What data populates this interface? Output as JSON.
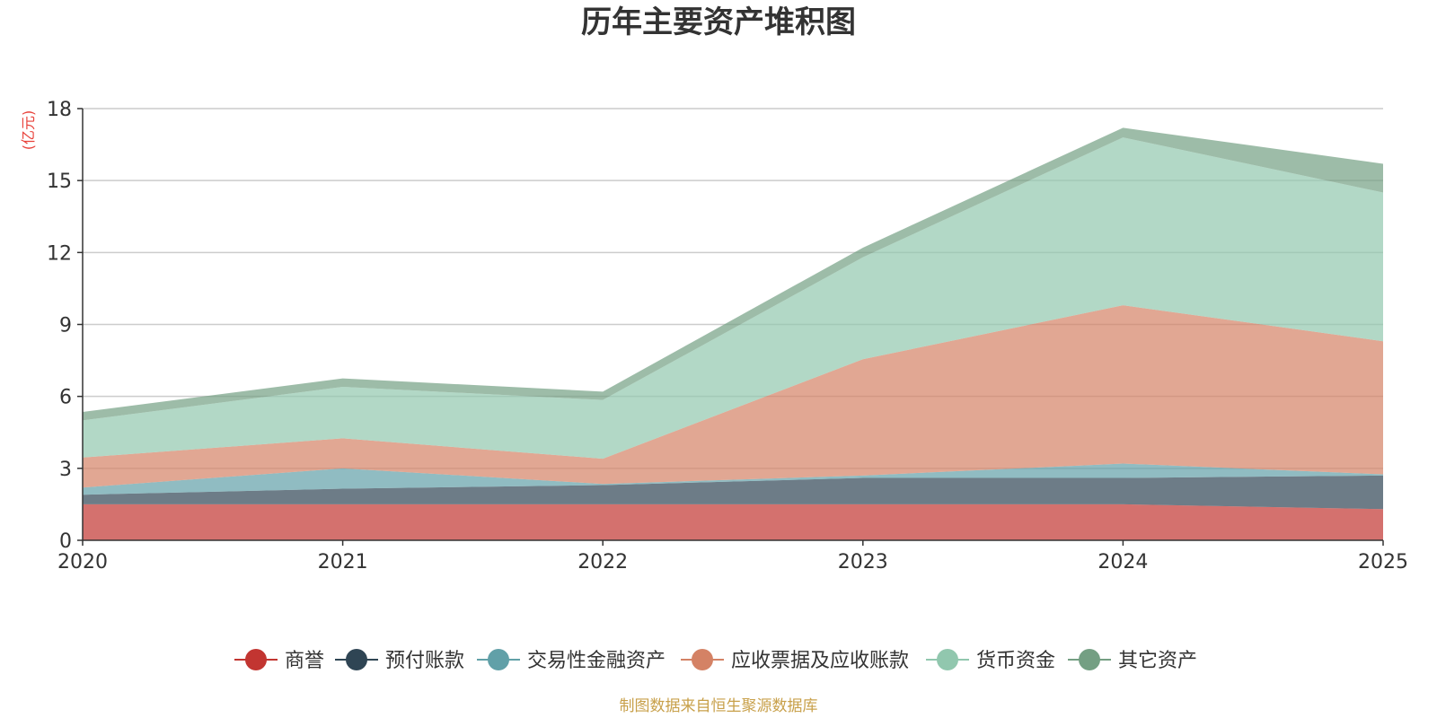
{
  "chart_data": {
    "type": "area",
    "stacked": true,
    "title": "历年主要资产堆积图",
    "unit_label": "(亿元)",
    "source": "制图数据来自恒生聚源数据库",
    "categories": [
      "2020",
      "2021",
      "2022",
      "2023",
      "2024",
      "2025"
    ],
    "ylim": [
      0,
      18
    ],
    "yticks": [
      0,
      3,
      6,
      9,
      12,
      15,
      18
    ],
    "grid": true,
    "legend_position": "bottom",
    "series": [
      {
        "name": "商誉",
        "color": "#c23531",
        "values": [
          1.5,
          1.5,
          1.5,
          1.5,
          1.5,
          1.3
        ]
      },
      {
        "name": "预付账款",
        "color": "#2f4554",
        "values": [
          0.4,
          0.65,
          0.8,
          1.1,
          1.1,
          1.4
        ]
      },
      {
        "name": "交易性金融资产",
        "color": "#61a0a8",
        "values": [
          0.3,
          0.85,
          0.05,
          0.1,
          0.6,
          0.05
        ]
      },
      {
        "name": "应收票据及应收账款",
        "color": "#d48265",
        "values": [
          1.25,
          1.25,
          1.05,
          4.85,
          6.6,
          5.55
        ]
      },
      {
        "name": "货币资金",
        "color": "#91c7ae",
        "values": [
          1.55,
          2.15,
          2.45,
          4.25,
          7.0,
          6.2
        ]
      },
      {
        "name": "其它资产",
        "color": "#749f83",
        "values": [
          0.35,
          0.35,
          0.35,
          0.4,
          0.4,
          1.2
        ]
      }
    ]
  }
}
